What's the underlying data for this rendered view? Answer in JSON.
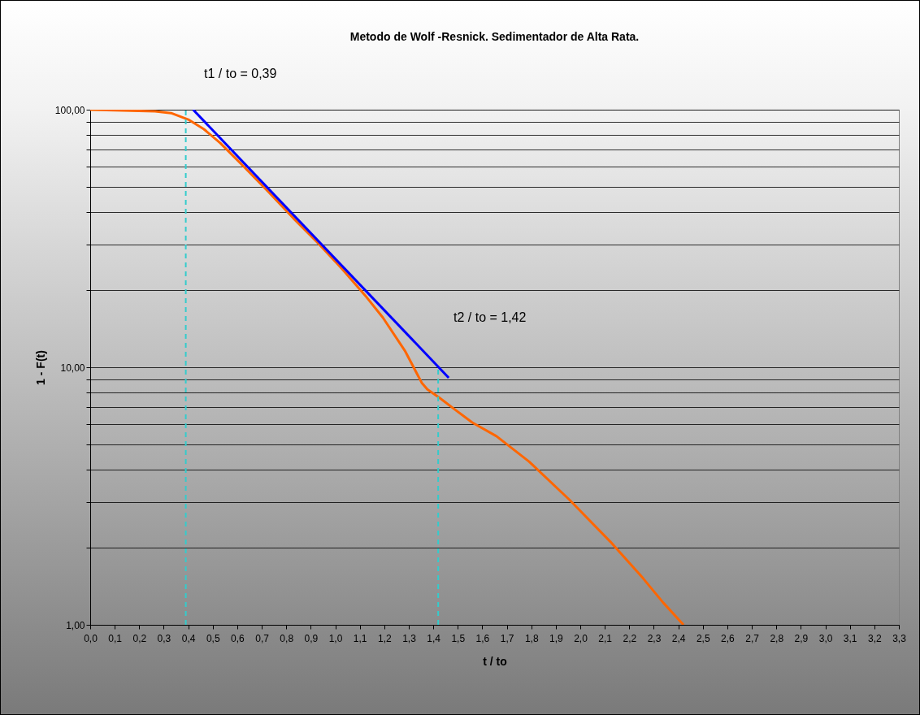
{
  "chart_data": {
    "type": "line",
    "title": "Metodo de Wolf -Resnick. Sedimentador de Alta Rata.",
    "xlabel": "t / to",
    "ylabel": "1 - F(t)",
    "annotations": [
      "t1 / to = 0,39",
      "t2 / to = 1,42"
    ],
    "series": [
      {
        "color": "#ff6600",
        "x": [
          0,
          0.265,
          0.33,
          0.4,
          0.464,
          0.531,
          0.63,
          0.73,
          0.829,
          0.929,
          1.028,
          1.128,
          1.194,
          1.284,
          1.327,
          1.353,
          1.376,
          1.426,
          1.493,
          1.559,
          1.658,
          1.791,
          1.957,
          2.123,
          2.255,
          2.338,
          2.421
        ],
        "values": [
          100,
          98.6,
          97,
          91.6,
          84,
          74.2,
          59.7,
          47.7,
          37.9,
          30.4,
          24.1,
          18.7,
          15.6,
          11.6,
          9.7,
          8.7,
          8.2,
          7.6,
          6.8,
          6.1,
          5.4,
          4.3,
          3.05,
          2.1,
          1.52,
          1.22,
          1.0
        ]
      },
      {
        "color": "#0000ff",
        "x": [
          0.42,
          1.463
        ],
        "values": [
          100,
          9.1
        ]
      },
      {
        "color": "#33cccc",
        "line_style": "dashed",
        "x": [
          0.39,
          0.39
        ],
        "values": [
          1,
          100
        ]
      },
      {
        "color": "#33cccc",
        "line_style": "dashed",
        "x": [
          1.42,
          1.42
        ],
        "values": [
          1,
          10
        ]
      }
    ],
    "log": "y",
    "grid": "y",
    "xlim": [
      0,
      3.3
    ],
    "ylim": [
      1,
      100
    ],
    "xticks": [
      {
        "value": 0,
        "label": "0,0"
      },
      {
        "value": 0.1,
        "label": "0,1"
      },
      {
        "value": 0.2,
        "label": "0,2"
      },
      {
        "value": 0.3,
        "label": "0,3"
      },
      {
        "value": 0.4,
        "label": "0,4"
      },
      {
        "value": 0.5,
        "label": "0,5"
      },
      {
        "value": 0.6,
        "label": "0,6"
      },
      {
        "value": 0.7,
        "label": "0,7"
      },
      {
        "value": 0.8,
        "label": "0,8"
      },
      {
        "value": 0.9,
        "label": "0,9"
      },
      {
        "value": 1,
        "label": "1,0"
      },
      {
        "value": 1.1,
        "label": "1,1"
      },
      {
        "value": 1.2,
        "label": "1,2"
      },
      {
        "value": 1.3,
        "label": "1,3"
      },
      {
        "value": 1.4,
        "label": "1,4"
      },
      {
        "value": 1.5,
        "label": "1,5"
      },
      {
        "value": 1.6,
        "label": "1,6"
      },
      {
        "value": 1.7,
        "label": "1,7"
      },
      {
        "value": 1.8,
        "label": "1,8"
      },
      {
        "value": 1.9,
        "label": "1,9"
      },
      {
        "value": 2,
        "label": "2,0"
      },
      {
        "value": 2.1,
        "label": "2,1"
      },
      {
        "value": 2.2,
        "label": "2,2"
      },
      {
        "value": 2.3,
        "label": "2,3"
      },
      {
        "value": 2.4,
        "label": "2,4"
      },
      {
        "value": 2.5,
        "label": "2,5"
      },
      {
        "value": 2.6,
        "label": "2,6"
      },
      {
        "value": 2.7,
        "label": "2,7"
      },
      {
        "value": 2.8,
        "label": "2,8"
      },
      {
        "value": 2.9,
        "label": "2,9"
      },
      {
        "value": 3,
        "label": "3,0"
      },
      {
        "value": 3.1,
        "label": "3,1"
      },
      {
        "value": 3.2,
        "label": "3,2"
      },
      {
        "value": 3.3,
        "label": "3,3"
      }
    ],
    "yticks": [
      {
        "value": 1,
        "label": "1,00"
      },
      {
        "value": 2,
        "label": null
      },
      {
        "value": 3,
        "label": null
      },
      {
        "value": 4,
        "label": null
      },
      {
        "value": 5,
        "label": null
      },
      {
        "value": 6,
        "label": null
      },
      {
        "value": 7,
        "label": null
      },
      {
        "value": 8,
        "label": null
      },
      {
        "value": 9,
        "label": null
      },
      {
        "value": 10,
        "label": "10,00"
      },
      {
        "value": 20,
        "label": null
      },
      {
        "value": 30,
        "label": null
      },
      {
        "value": 40,
        "label": null
      },
      {
        "value": 50,
        "label": null
      },
      {
        "value": 60,
        "label": null
      },
      {
        "value": 70,
        "label": null
      },
      {
        "value": 80,
        "label": null
      },
      {
        "value": 90,
        "label": null
      },
      {
        "value": 100,
        "label": "100,00"
      }
    ]
  }
}
